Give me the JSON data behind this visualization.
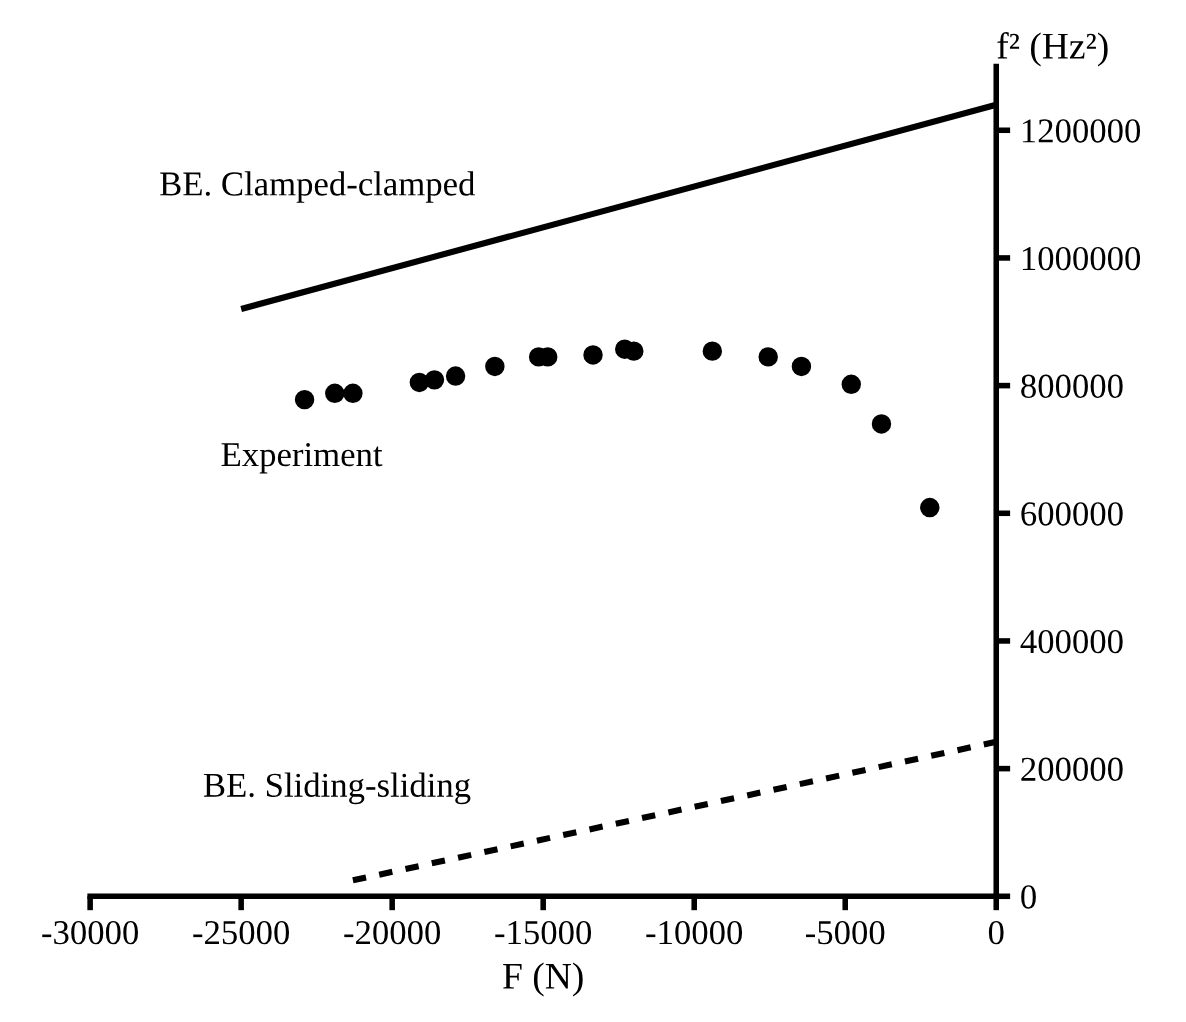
{
  "chart_data": {
    "type": "line",
    "xlabel": "F (N)",
    "ylabel": "f² (Hz²)",
    "xlim": [
      -30000,
      0
    ],
    "xticks": [
      -30000,
      -25000,
      -20000,
      -15000,
      -10000,
      -5000,
      0
    ],
    "ylim": [
      0,
      1300000
    ],
    "yticks": [
      0,
      200000,
      400000,
      600000,
      800000,
      1000000,
      1200000
    ],
    "grid": false,
    "legend": false,
    "series": [
      {
        "name": "BE. Clamped-clamped",
        "color": "#000000",
        "line_style": "solid",
        "x": [
          -25000,
          0
        ],
        "values": [
          920000,
          1240000
        ]
      },
      {
        "name": "Experiment",
        "type": "scatter",
        "color": "#000000",
        "marker": "circle",
        "x": [
          -22900,
          -21900,
          -21300,
          -19100,
          -18600,
          -17900,
          -16600,
          -15150,
          -14850,
          -13350,
          -12300,
          -12000,
          -9400,
          -7550,
          -6450,
          -4800,
          -3800,
          -2200
        ],
        "values": [
          778000,
          788000,
          788000,
          805000,
          809000,
          815000,
          830000,
          845000,
          845000,
          848000,
          857000,
          854000,
          854000,
          845000,
          830000,
          802000,
          740000,
          609000
        ]
      },
      {
        "name": "BE. Sliding-sliding",
        "color": "#000000",
        "line_style": "dotted",
        "x": [
          -21300,
          0
        ],
        "values": [
          25000,
          242000
        ]
      }
    ]
  }
}
